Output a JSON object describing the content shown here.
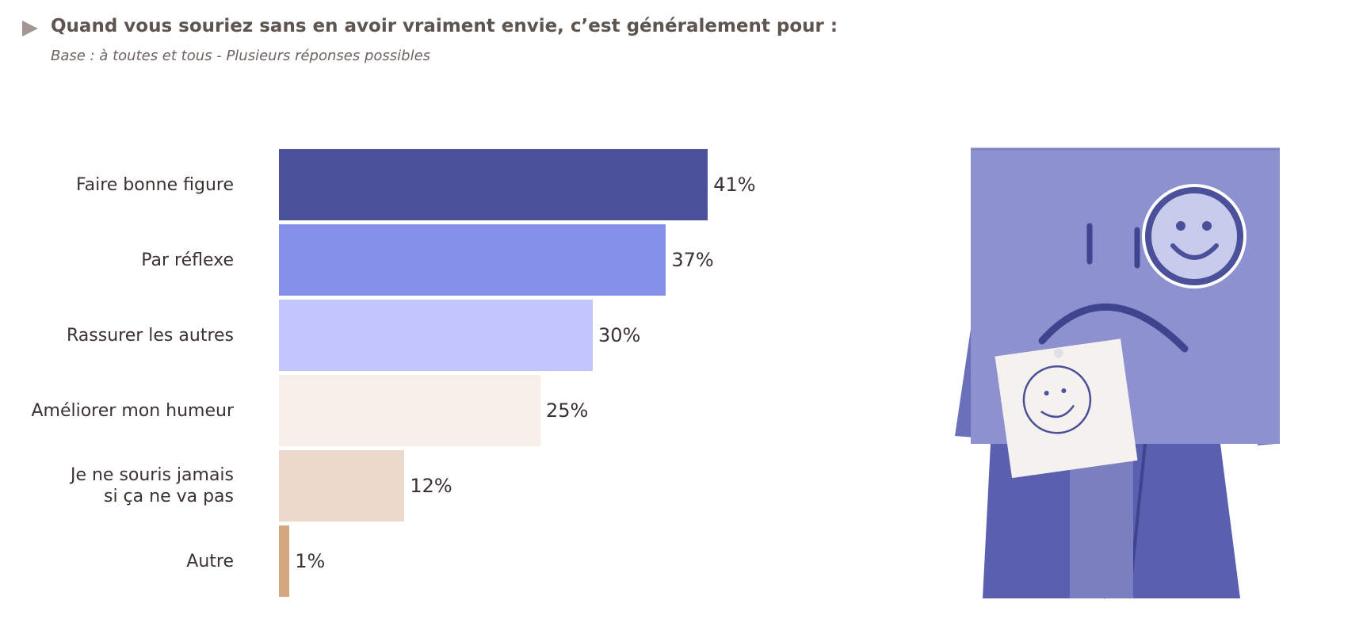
{
  "chart_data": {
    "type": "bar",
    "orientation": "horizontal",
    "title": "Quand vous souriez sans en avoir vraiment envie, c’est généralement pour :",
    "subtitle": "Base : à toutes et tous - Plusieurs réponses possibles",
    "categories": [
      "Faire bonne figure",
      "Par réflexe",
      "Rassurer les autres",
      "Améliorer mon humeur",
      "Je ne souris jamais\nsi ça ne va pas",
      "Autre"
    ],
    "values": [
      41,
      37,
      30,
      25,
      12,
      1
    ],
    "value_labels": [
      "41%",
      "37%",
      "30%",
      "25%",
      "12%",
      "1%"
    ],
    "colors": [
      "#4a509a",
      "#8590e8",
      "#c3c6fc",
      "#f5eee9",
      "#ebdacb",
      "#d4a77c"
    ]
  }
}
